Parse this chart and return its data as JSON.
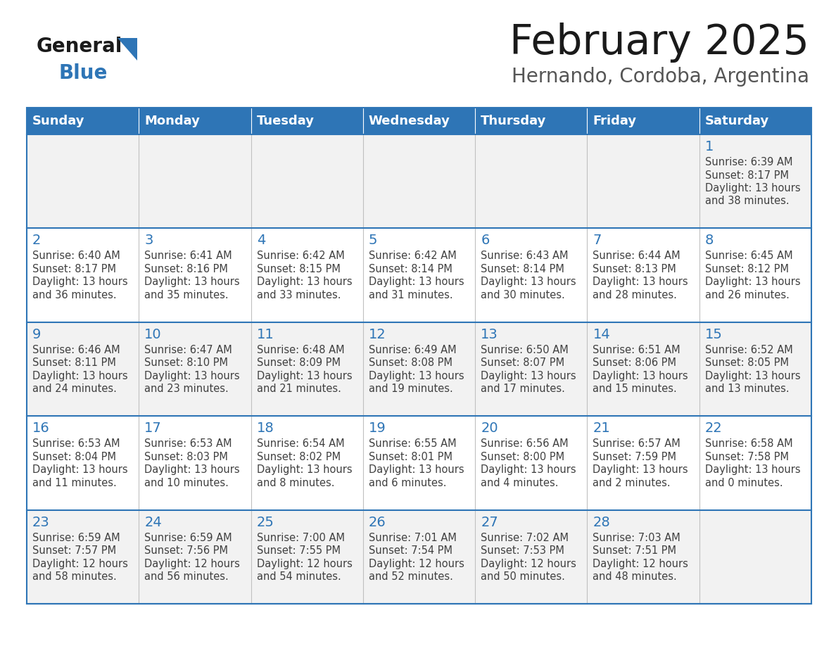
{
  "title": "February 2025",
  "subtitle": "Hernando, Cordoba, Argentina",
  "days_of_week": [
    "Sunday",
    "Monday",
    "Tuesday",
    "Wednesday",
    "Thursday",
    "Friday",
    "Saturday"
  ],
  "header_bg": "#2E75B6",
  "header_text": "#FFFFFF",
  "row_bg_odd": "#F2F2F2",
  "row_bg_even": "#FFFFFF",
  "cell_text_color": "#404040",
  "day_number_color": "#2E75B6",
  "border_color": "#2E75B6",
  "grid_color": "#C0C0C0",
  "logo_general_color": "#1A1A1A",
  "logo_blue_color": "#2E75B6",
  "calendar_data": [
    [
      null,
      null,
      null,
      null,
      null,
      null,
      {
        "day": "1",
        "sunrise": "6:39 AM",
        "sunset": "8:17 PM",
        "daylight_h": "13 hours",
        "daylight_m": "38 minutes"
      }
    ],
    [
      {
        "day": "2",
        "sunrise": "6:40 AM",
        "sunset": "8:17 PM",
        "daylight_h": "13 hours",
        "daylight_m": "36 minutes"
      },
      {
        "day": "3",
        "sunrise": "6:41 AM",
        "sunset": "8:16 PM",
        "daylight_h": "13 hours",
        "daylight_m": "35 minutes"
      },
      {
        "day": "4",
        "sunrise": "6:42 AM",
        "sunset": "8:15 PM",
        "daylight_h": "13 hours",
        "daylight_m": "33 minutes"
      },
      {
        "day": "5",
        "sunrise": "6:42 AM",
        "sunset": "8:14 PM",
        "daylight_h": "13 hours",
        "daylight_m": "31 minutes"
      },
      {
        "day": "6",
        "sunrise": "6:43 AM",
        "sunset": "8:14 PM",
        "daylight_h": "13 hours",
        "daylight_m": "30 minutes"
      },
      {
        "day": "7",
        "sunrise": "6:44 AM",
        "sunset": "8:13 PM",
        "daylight_h": "13 hours",
        "daylight_m": "28 minutes"
      },
      {
        "day": "8",
        "sunrise": "6:45 AM",
        "sunset": "8:12 PM",
        "daylight_h": "13 hours",
        "daylight_m": "26 minutes"
      }
    ],
    [
      {
        "day": "9",
        "sunrise": "6:46 AM",
        "sunset": "8:11 PM",
        "daylight_h": "13 hours",
        "daylight_m": "24 minutes"
      },
      {
        "day": "10",
        "sunrise": "6:47 AM",
        "sunset": "8:10 PM",
        "daylight_h": "13 hours",
        "daylight_m": "23 minutes"
      },
      {
        "day": "11",
        "sunrise": "6:48 AM",
        "sunset": "8:09 PM",
        "daylight_h": "13 hours",
        "daylight_m": "21 minutes"
      },
      {
        "day": "12",
        "sunrise": "6:49 AM",
        "sunset": "8:08 PM",
        "daylight_h": "13 hours",
        "daylight_m": "19 minutes"
      },
      {
        "day": "13",
        "sunrise": "6:50 AM",
        "sunset": "8:07 PM",
        "daylight_h": "13 hours",
        "daylight_m": "17 minutes"
      },
      {
        "day": "14",
        "sunrise": "6:51 AM",
        "sunset": "8:06 PM",
        "daylight_h": "13 hours",
        "daylight_m": "15 minutes"
      },
      {
        "day": "15",
        "sunrise": "6:52 AM",
        "sunset": "8:05 PM",
        "daylight_h": "13 hours",
        "daylight_m": "13 minutes"
      }
    ],
    [
      {
        "day": "16",
        "sunrise": "6:53 AM",
        "sunset": "8:04 PM",
        "daylight_h": "13 hours",
        "daylight_m": "11 minutes"
      },
      {
        "day": "17",
        "sunrise": "6:53 AM",
        "sunset": "8:03 PM",
        "daylight_h": "13 hours",
        "daylight_m": "10 minutes"
      },
      {
        "day": "18",
        "sunrise": "6:54 AM",
        "sunset": "8:02 PM",
        "daylight_h": "13 hours",
        "daylight_m": "8 minutes"
      },
      {
        "day": "19",
        "sunrise": "6:55 AM",
        "sunset": "8:01 PM",
        "daylight_h": "13 hours",
        "daylight_m": "6 minutes"
      },
      {
        "day": "20",
        "sunrise": "6:56 AM",
        "sunset": "8:00 PM",
        "daylight_h": "13 hours",
        "daylight_m": "4 minutes"
      },
      {
        "day": "21",
        "sunrise": "6:57 AM",
        "sunset": "7:59 PM",
        "daylight_h": "13 hours",
        "daylight_m": "2 minutes"
      },
      {
        "day": "22",
        "sunrise": "6:58 AM",
        "sunset": "7:58 PM",
        "daylight_h": "13 hours",
        "daylight_m": "0 minutes"
      }
    ],
    [
      {
        "day": "23",
        "sunrise": "6:59 AM",
        "sunset": "7:57 PM",
        "daylight_h": "12 hours",
        "daylight_m": "58 minutes"
      },
      {
        "day": "24",
        "sunrise": "6:59 AM",
        "sunset": "7:56 PM",
        "daylight_h": "12 hours",
        "daylight_m": "56 minutes"
      },
      {
        "day": "25",
        "sunrise": "7:00 AM",
        "sunset": "7:55 PM",
        "daylight_h": "12 hours",
        "daylight_m": "54 minutes"
      },
      {
        "day": "26",
        "sunrise": "7:01 AM",
        "sunset": "7:54 PM",
        "daylight_h": "12 hours",
        "daylight_m": "52 minutes"
      },
      {
        "day": "27",
        "sunrise": "7:02 AM",
        "sunset": "7:53 PM",
        "daylight_h": "12 hours",
        "daylight_m": "50 minutes"
      },
      {
        "day": "28",
        "sunrise": "7:03 AM",
        "sunset": "7:51 PM",
        "daylight_h": "12 hours",
        "daylight_m": "48 minutes"
      },
      null
    ]
  ],
  "fig_width": 11.88,
  "fig_height": 9.18,
  "dpi": 100
}
